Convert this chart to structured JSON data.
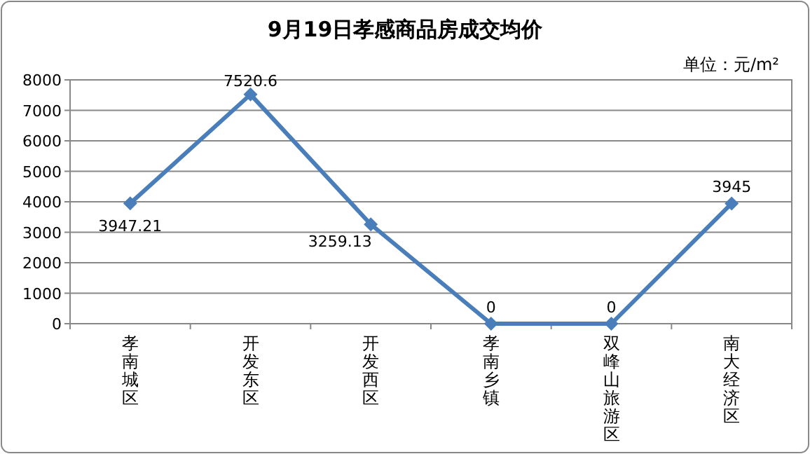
{
  "chart_data": {
    "type": "line",
    "title": "9月19日孝感商品房成交均价",
    "annotations": [
      "单位：元/m²"
    ],
    "categories": [
      "孝南城区",
      "开发东区",
      "开发西区",
      "孝南乡镇",
      "双峰山旅游区",
      "南大经济区"
    ],
    "series": [
      {
        "color": "#4a7ebb",
        "values": [
          3947.21,
          7520.6,
          3259.13,
          0,
          0,
          3945
        ]
      }
    ],
    "ylim": [
      0,
      8000
    ],
    "yticks": [
      0,
      1000,
      2000,
      3000,
      4000,
      5000,
      6000,
      7000,
      8000
    ],
    "grid": "y",
    "marker": "diamond",
    "data_labels": true
  }
}
